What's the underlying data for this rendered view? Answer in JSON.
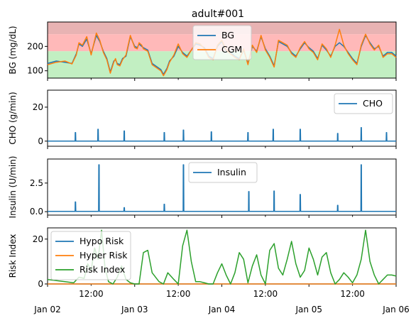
{
  "colors": {
    "bg": "#1f77b4",
    "cgm": "#ff7f0e",
    "risk": "#2ca02c",
    "zone_high": "#e8b3b3",
    "zone_hyper": "#ffb9b9",
    "zone_target": "#c2efc2"
  },
  "x_ticks": {
    "major": [
      "Jan 02",
      "Jan 03",
      "Jan 04",
      "Jan 05",
      "Jan 06"
    ],
    "minor": [
      "12:00",
      "12:00",
      "12:00",
      "12:00"
    ]
  },
  "chart_data": [
    {
      "type": "line",
      "title": "adult#001",
      "ylabel": "BG (mg/dL)",
      "ylim": [
        70,
        300
      ],
      "yticks": [
        "100",
        "200"
      ],
      "x_unit": "days since Jan 02 00:00",
      "xlim": [
        0,
        4
      ],
      "zones": [
        {
          "from": 250,
          "to": 300,
          "label": "severe hyperglycemia"
        },
        {
          "from": 180,
          "to": 250,
          "label": "hyperglycemia"
        },
        {
          "from": 70,
          "to": 180,
          "label": "target"
        }
      ],
      "legend": "top-center",
      "series": [
        {
          "name": "BG",
          "x": [
            0,
            0.1,
            0.2,
            0.28,
            0.33,
            0.36,
            0.4,
            0.45,
            0.5,
            0.56,
            0.6,
            0.64,
            0.68,
            0.72,
            0.76,
            0.78,
            0.8,
            0.83,
            0.86,
            0.9,
            0.95,
            1.0,
            1.03,
            1.05,
            1.08,
            1.1,
            1.15,
            1.2,
            1.3,
            1.33,
            1.37,
            1.4,
            1.45,
            1.5,
            1.55,
            1.6,
            1.7,
            1.75,
            1.8,
            1.85,
            1.9,
            1.95,
            2.0,
            2.05,
            2.1,
            2.15,
            2.2,
            2.25,
            2.3,
            2.35,
            2.4,
            2.45,
            2.5,
            2.55,
            2.6,
            2.65,
            2.7,
            2.75,
            2.8,
            2.85,
            2.9,
            2.95,
            3.0,
            3.05,
            3.1,
            3.15,
            3.2,
            3.25,
            3.3,
            3.35,
            3.4,
            3.45,
            3.5,
            3.55,
            3.6,
            3.65,
            3.7,
            3.75,
            3.8,
            3.85,
            3.9,
            3.95,
            4.0
          ],
          "y": [
            130,
            140,
            135,
            130,
            170,
            210,
            200,
            230,
            170,
            245,
            220,
            180,
            150,
            95,
            140,
            145,
            130,
            125,
            150,
            160,
            240,
            200,
            195,
            210,
            200,
            195,
            185,
            130,
            105,
            85,
            110,
            140,
            160,
            200,
            175,
            160,
            210,
            205,
            195,
            160,
            150,
            200,
            220,
            180,
            175,
            160,
            150,
            185,
            130,
            200,
            180,
            240,
            190,
            160,
            120,
            220,
            210,
            200,
            175,
            160,
            190,
            215,
            195,
            180,
            150,
            205,
            185,
            160,
            200,
            215,
            200,
            175,
            150,
            130,
            200,
            245,
            215,
            190,
            200,
            160,
            175,
            175,
            160
          ]
        },
        {
          "name": "CGM",
          "x": [
            0,
            0.1,
            0.2,
            0.28,
            0.33,
            0.36,
            0.4,
            0.45,
            0.5,
            0.56,
            0.6,
            0.64,
            0.68,
            0.72,
            0.76,
            0.78,
            0.8,
            0.83,
            0.86,
            0.9,
            0.95,
            1.0,
            1.03,
            1.05,
            1.08,
            1.1,
            1.15,
            1.2,
            1.3,
            1.33,
            1.37,
            1.4,
            1.45,
            1.5,
            1.55,
            1.6,
            1.7,
            1.75,
            1.8,
            1.85,
            1.9,
            1.95,
            2.0,
            2.05,
            2.1,
            2.15,
            2.2,
            2.25,
            2.3,
            2.35,
            2.4,
            2.45,
            2.5,
            2.55,
            2.6,
            2.65,
            2.7,
            2.75,
            2.8,
            2.85,
            2.9,
            2.95,
            3.0,
            3.05,
            3.1,
            3.15,
            3.2,
            3.25,
            3.3,
            3.35,
            3.4,
            3.45,
            3.5,
            3.55,
            3.6,
            3.65,
            3.7,
            3.75,
            3.8,
            3.85,
            3.9,
            3.95,
            4.0
          ],
          "y": [
            125,
            135,
            140,
            128,
            165,
            215,
            205,
            240,
            165,
            255,
            225,
            175,
            145,
            90,
            135,
            150,
            125,
            120,
            145,
            165,
            245,
            195,
            190,
            215,
            205,
            190,
            180,
            125,
            100,
            80,
            105,
            135,
            165,
            210,
            170,
            155,
            215,
            210,
            190,
            155,
            145,
            205,
            225,
            185,
            170,
            155,
            145,
            190,
            125,
            205,
            175,
            245,
            185,
            155,
            115,
            225,
            215,
            205,
            170,
            155,
            195,
            220,
            190,
            175,
            145,
            210,
            190,
            155,
            205,
            270,
            205,
            170,
            145,
            125,
            205,
            250,
            210,
            185,
            205,
            155,
            170,
            170,
            155
          ]
        }
      ]
    },
    {
      "type": "line",
      "ylabel": "CHO (g/min)",
      "ylim": [
        -3,
        30
      ],
      "yticks": [
        "0",
        "20"
      ],
      "xlim": [
        0,
        4
      ],
      "legend": "top-right",
      "series": [
        {
          "name": "CHO",
          "spikes": [
            {
              "x": 0.32,
              "y": 5
            },
            {
              "x": 0.58,
              "y": 7
            },
            {
              "x": 0.88,
              "y": 6
            },
            {
              "x": 1.34,
              "y": 5
            },
            {
              "x": 1.56,
              "y": 6.5
            },
            {
              "x": 1.88,
              "y": 5.5
            },
            {
              "x": 2.3,
              "y": 5
            },
            {
              "x": 2.59,
              "y": 7
            },
            {
              "x": 2.9,
              "y": 7
            },
            {
              "x": 3.33,
              "y": 4.5
            },
            {
              "x": 3.6,
              "y": 8
            },
            {
              "x": 3.89,
              "y": 5
            }
          ]
        }
      ]
    },
    {
      "type": "line",
      "ylabel": "Insulin (U/min)",
      "ylim": [
        -0.3,
        4.6
      ],
      "yticks": [
        "0.0",
        "2.5"
      ],
      "xlim": [
        0,
        4
      ],
      "legend": "top-center",
      "series": [
        {
          "name": "Insulin",
          "baseline": 0.02,
          "spikes": [
            {
              "x": 0.32,
              "y": 0.85
            },
            {
              "x": 0.59,
              "y": 4.1
            },
            {
              "x": 0.88,
              "y": 0.35
            },
            {
              "x": 1.34,
              "y": 0.65
            },
            {
              "x": 1.56,
              "y": 4.1
            },
            {
              "x": 2.31,
              "y": 1.75
            },
            {
              "x": 2.6,
              "y": 1.8
            },
            {
              "x": 2.9,
              "y": 1.5
            },
            {
              "x": 3.33,
              "y": 0.55
            },
            {
              "x": 3.6,
              "y": 4.1
            }
          ]
        }
      ]
    },
    {
      "type": "line",
      "ylabel": "Risk Index",
      "ylim": [
        0,
        25
      ],
      "yticks": [
        "0",
        "20"
      ],
      "xlim": [
        0,
        4
      ],
      "legend": "top-left",
      "series": [
        {
          "name": "Hypo Risk",
          "x": [
            0,
            4
          ],
          "y": [
            0,
            0
          ]
        },
        {
          "name": "Hyper Risk",
          "x": [
            0,
            4
          ],
          "y": [
            0,
            0
          ]
        },
        {
          "name": "Risk Index",
          "x": [
            0,
            0.2,
            0.3,
            0.36,
            0.42,
            0.46,
            0.5,
            0.54,
            0.58,
            0.62,
            0.66,
            0.7,
            0.75,
            0.8,
            0.85,
            0.9,
            0.95,
            1.0,
            1.05,
            1.1,
            1.15,
            1.2,
            1.28,
            1.33,
            1.38,
            1.45,
            1.5,
            1.55,
            1.6,
            1.65,
            1.7,
            1.75,
            1.8,
            1.85,
            1.9,
            1.95,
            2.0,
            2.05,
            2.1,
            2.15,
            2.2,
            2.25,
            2.3,
            2.35,
            2.4,
            2.45,
            2.5,
            2.55,
            2.6,
            2.65,
            2.7,
            2.75,
            2.8,
            2.85,
            2.9,
            2.95,
            3.0,
            3.05,
            3.1,
            3.15,
            3.2,
            3.25,
            3.3,
            3.35,
            3.4,
            3.45,
            3.5,
            3.55,
            3.6,
            3.65,
            3.7,
            3.75,
            3.8,
            3.85,
            3.9,
            3.95,
            4.0
          ],
          "y": [
            2,
            1,
            0.5,
            3,
            2.5,
            9,
            6,
            16,
            11,
            24,
            7,
            1,
            0,
            3,
            8,
            2,
            0.5,
            0,
            0,
            14,
            15,
            5,
            1,
            0,
            5,
            2,
            0,
            17,
            24,
            10,
            1,
            1,
            0.5,
            0,
            0,
            5,
            9,
            4,
            0,
            5,
            14,
            11,
            0.5,
            8,
            13,
            4,
            0,
            15,
            18,
            7,
            4,
            11,
            19,
            9,
            3,
            6,
            16,
            11,
            4,
            12,
            14,
            5,
            0,
            2,
            5,
            3,
            0.5,
            4,
            11,
            24,
            10,
            4,
            0,
            2,
            4,
            4,
            3.5
          ]
        }
      ]
    }
  ]
}
